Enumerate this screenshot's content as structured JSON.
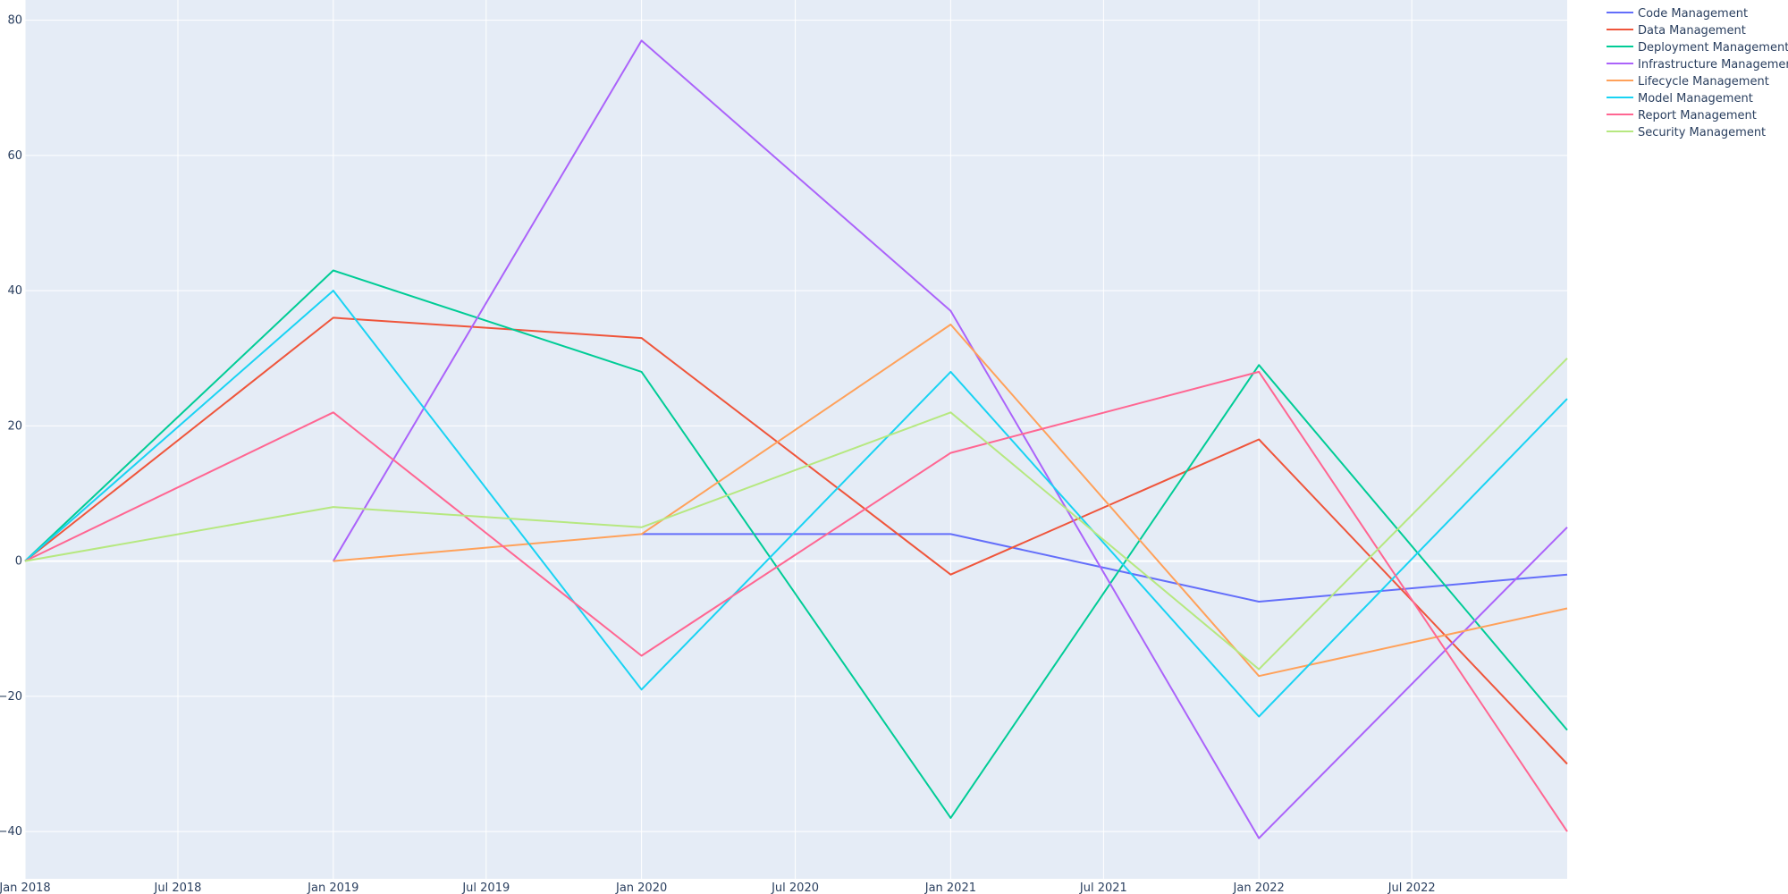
{
  "chart_data": {
    "type": "line",
    "title": "",
    "xlabel": "",
    "ylabel": "",
    "x": [
      "2018-01-01",
      "2019-01-01",
      "2020-01-01",
      "2021-01-01",
      "2022-01-01",
      "2023-01-01"
    ],
    "xlim": [
      "2018-01-01",
      "2023-01-01"
    ],
    "ylim": [
      -47,
      83
    ],
    "x_ticks": [
      {
        "date": "2018-01-01",
        "label": "Jan 2018"
      },
      {
        "date": "2018-07-01",
        "label": "Jul 2018"
      },
      {
        "date": "2019-01-01",
        "label": "Jan 2019"
      },
      {
        "date": "2019-07-01",
        "label": "Jul 2019"
      },
      {
        "date": "2020-01-01",
        "label": "Jan 2020"
      },
      {
        "date": "2020-07-01",
        "label": "Jul 2020"
      },
      {
        "date": "2021-01-01",
        "label": "Jan 2021"
      },
      {
        "date": "2021-07-01",
        "label": "Jul 2021"
      },
      {
        "date": "2022-01-01",
        "label": "Jan 2022"
      },
      {
        "date": "2022-07-01",
        "label": "Jul 2022"
      }
    ],
    "y_ticks": [
      {
        "value": -40,
        "label": "−40"
      },
      {
        "value": -20,
        "label": "−20"
      },
      {
        "value": 0,
        "label": "0"
      },
      {
        "value": 20,
        "label": "20"
      },
      {
        "value": 40,
        "label": "40"
      },
      {
        "value": 60,
        "label": "60"
      },
      {
        "value": 80,
        "label": "80"
      }
    ],
    "grid": true,
    "legend_position": "top-right, outside plot",
    "background_color": "#E5ECF6",
    "series": [
      {
        "name": "Code Management",
        "color": "#636EFA",
        "values": [
          null,
          null,
          4,
          4,
          -6,
          -2
        ]
      },
      {
        "name": "Data Management",
        "color": "#EF553B",
        "values": [
          0,
          36,
          33,
          -2,
          18,
          -30
        ]
      },
      {
        "name": "Deployment Management",
        "color": "#00CC96",
        "values": [
          0,
          43,
          28,
          -38,
          29,
          -25
        ]
      },
      {
        "name": "Infrastructure Management",
        "color": "#AB63FA",
        "values": [
          null,
          0,
          77,
          37,
          -41,
          5
        ]
      },
      {
        "name": "Lifecycle Management",
        "color": "#FFA15A",
        "values": [
          null,
          0,
          4,
          35,
          -17,
          -7
        ]
      },
      {
        "name": "Model Management",
        "color": "#19D3F3",
        "values": [
          0,
          40,
          -19,
          28,
          -23,
          24
        ]
      },
      {
        "name": "Report Management",
        "color": "#FF6692",
        "values": [
          0,
          22,
          -14,
          16,
          28,
          -40
        ]
      },
      {
        "name": "Security Management",
        "color": "#B6E880",
        "values": [
          0,
          8,
          5,
          22,
          -16,
          30
        ]
      }
    ]
  }
}
